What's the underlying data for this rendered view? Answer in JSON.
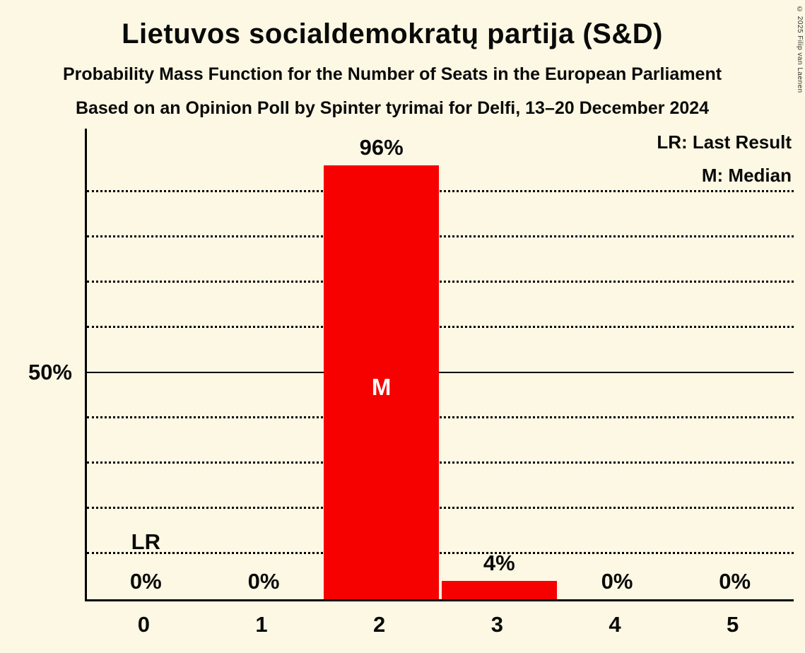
{
  "title": "Lietuvos socialdemokratų partija (S&D)",
  "subtitle1": "Probability Mass Function for the Number of Seats in the European Parliament",
  "subtitle2": "Based on an Opinion Poll by Spinter tyrimai for Delfi, 13–20 December 2024",
  "copyright": "© 2025 Filip van Laenen",
  "legend": {
    "lr": "LR: Last Result",
    "m": "M: Median"
  },
  "y_axis": {
    "label_50": "50%"
  },
  "chart_data": {
    "type": "bar",
    "categories": [
      "0",
      "1",
      "2",
      "3",
      "4",
      "5"
    ],
    "values": [
      0,
      0,
      96,
      4,
      0,
      0
    ],
    "value_labels": [
      "0%",
      "0%",
      "96%",
      "4%",
      "0%",
      "0%"
    ],
    "title": "Lietuvos socialdemokratų partija (S&D)",
    "xlabel": "",
    "ylabel": "50%",
    "ylim": [
      0,
      104
    ],
    "bar_color": "#f60000",
    "median_category": "2",
    "median_marker": "M",
    "last_result_category": "0",
    "last_result_marker": "LR",
    "gridlines_dotted_pct": [
      10,
      20,
      30,
      40,
      60,
      70,
      80,
      90
    ],
    "gridline_solid_pct": 50,
    "grid": true,
    "legend_position": "top-right"
  }
}
